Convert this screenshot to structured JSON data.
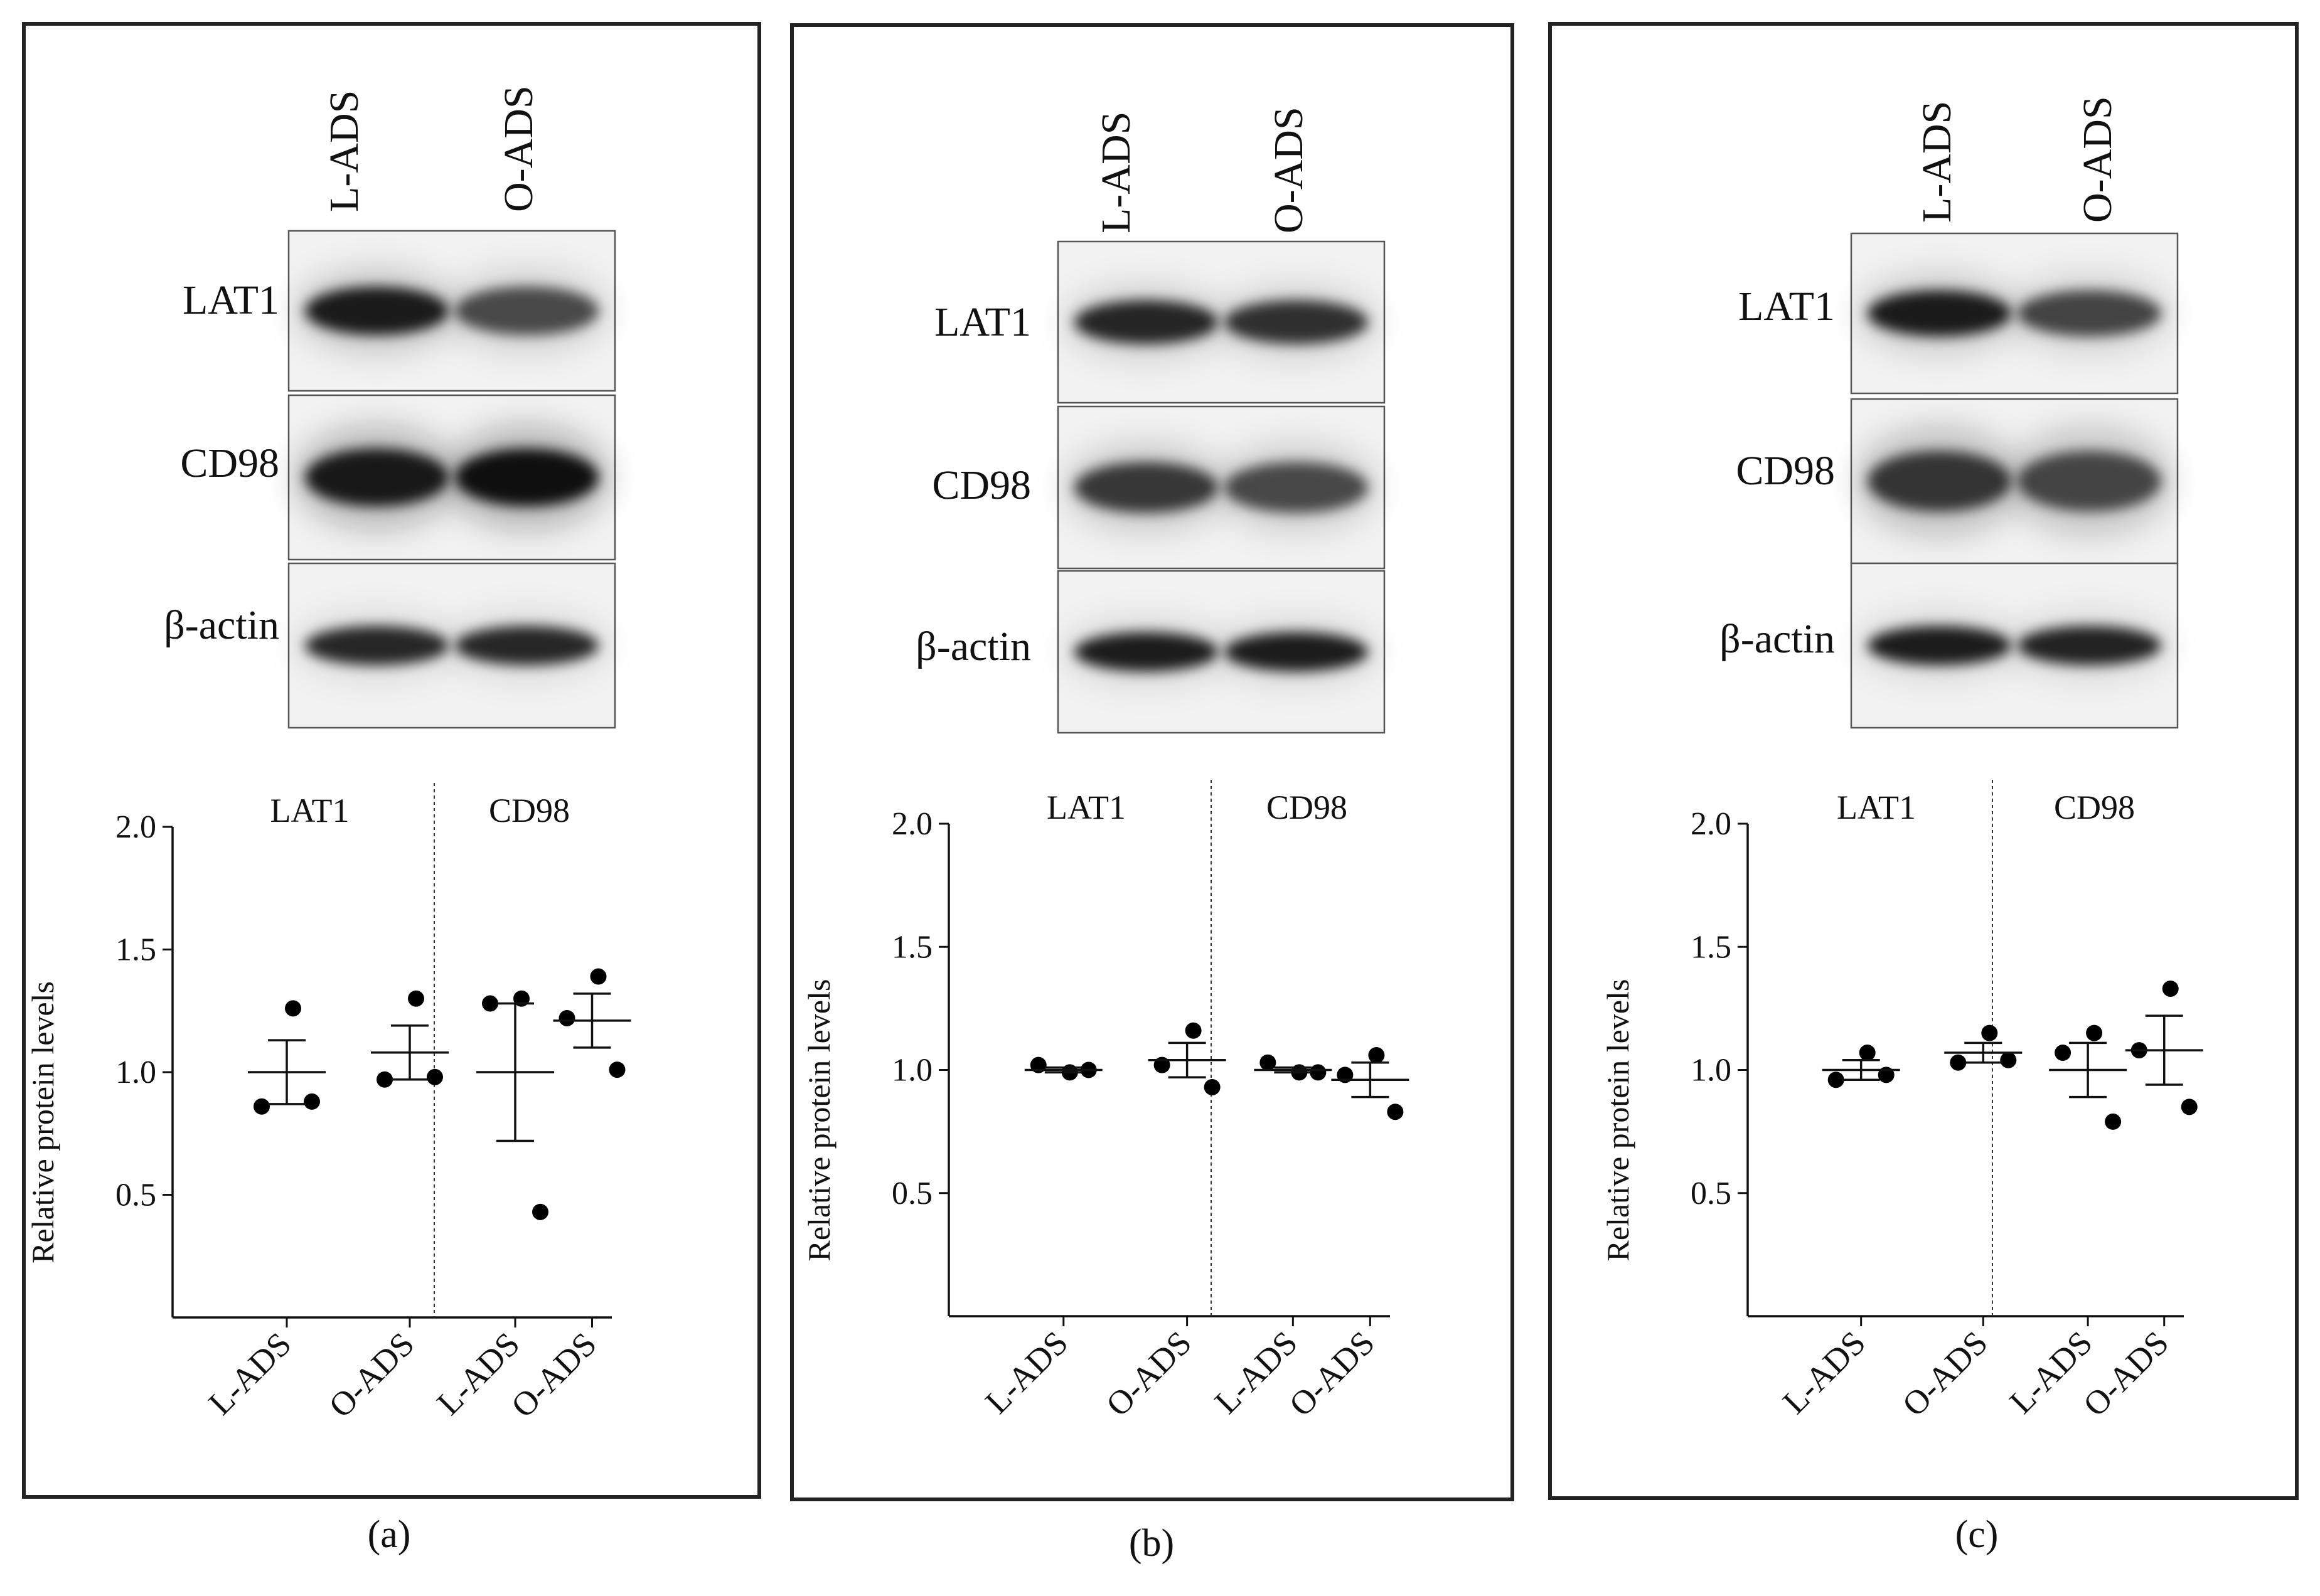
{
  "panels": [
    {
      "label": "(a)",
      "lanes": [
        "L-ADS",
        "O-ADS"
      ],
      "blots": [
        "LAT1",
        "CD98",
        "β-actin"
      ],
      "blot_bands": [
        {
          "intensity": [
            0.95,
            0.72
          ],
          "spread": 0.55
        },
        {
          "intensity": [
            0.95,
            1.0
          ],
          "spread": 0.75
        },
        {
          "intensity": [
            0.9,
            0.9
          ],
          "spread": 0.35
        }
      ]
    },
    {
      "label": "(b)",
      "lanes": [
        "L-ADS",
        "O-ADS"
      ],
      "blots": [
        "LAT1",
        "CD98",
        "β-actin"
      ],
      "blot_bands": [
        {
          "intensity": [
            0.9,
            0.85
          ],
          "spread": 0.45
        },
        {
          "intensity": [
            0.8,
            0.72
          ],
          "spread": 0.6
        },
        {
          "intensity": [
            0.95,
            0.95
          ],
          "spread": 0.35
        }
      ]
    },
    {
      "label": "(c)",
      "lanes": [
        "L-ADS",
        "O-ADS"
      ],
      "blots": [
        "LAT1",
        "CD98",
        "β-actin"
      ],
      "blot_bands": [
        {
          "intensity": [
            0.95,
            0.75
          ],
          "spread": 0.5
        },
        {
          "intensity": [
            0.8,
            0.72
          ],
          "spread": 0.8
        },
        {
          "intensity": [
            0.95,
            0.92
          ],
          "spread": 0.35
        }
      ]
    }
  ],
  "chart_data": [
    {
      "type": "scatter",
      "panel": "(a)",
      "ylabel": "Relative protein levels",
      "ylim": [
        0.0,
        2.0
      ],
      "yticks": [
        "0.5",
        "1.0",
        "1.5",
        "2.0"
      ],
      "groups": [
        "LAT1",
        "CD98"
      ],
      "categories": [
        "L-ADS",
        "O-ADS",
        "L-ADS",
        "O-ADS"
      ],
      "series": [
        {
          "group": "LAT1",
          "name": "L-ADS",
          "points": [
            1.26,
            0.86,
            0.88
          ],
          "mean": 1.0,
          "sem": 0.13
        },
        {
          "group": "LAT1",
          "name": "O-ADS",
          "points": [
            1.3,
            0.97,
            0.98
          ],
          "mean": 1.08,
          "sem": 0.11
        },
        {
          "group": "CD98",
          "name": "L-ADS",
          "points": [
            1.3,
            1.28,
            0.43
          ],
          "mean": 1.0,
          "sem": 0.28
        },
        {
          "group": "CD98",
          "name": "O-ADS",
          "points": [
            1.39,
            1.22,
            1.01
          ],
          "mean": 1.21,
          "sem": 0.11
        }
      ]
    },
    {
      "type": "scatter",
      "panel": "(b)",
      "ylabel": "Relative protein levels",
      "ylim": [
        0.0,
        2.0
      ],
      "yticks": [
        "0.5",
        "1.0",
        "1.5",
        "2.0"
      ],
      "groups": [
        "LAT1",
        "CD98"
      ],
      "categories": [
        "L-ADS",
        "O-ADS",
        "L-ADS",
        "O-ADS"
      ],
      "series": [
        {
          "group": "LAT1",
          "name": "L-ADS",
          "points": [
            0.99,
            1.02,
            1.0
          ],
          "mean": 1.0,
          "sem": 0.01
        },
        {
          "group": "LAT1",
          "name": "O-ADS",
          "points": [
            1.16,
            1.02,
            0.93
          ],
          "mean": 1.04,
          "sem": 0.07
        },
        {
          "group": "CD98",
          "name": "L-ADS",
          "points": [
            0.99,
            1.03,
            0.99
          ],
          "mean": 1.0,
          "sem": 0.01
        },
        {
          "group": "CD98",
          "name": "O-ADS",
          "points": [
            1.06,
            0.98,
            0.83
          ],
          "mean": 0.96,
          "sem": 0.07
        }
      ]
    },
    {
      "type": "scatter",
      "panel": "(c)",
      "ylabel": "Relative protein levels",
      "ylim": [
        0.0,
        2.0
      ],
      "yticks": [
        "0.5",
        "1.0",
        "1.5",
        "2.0"
      ],
      "groups": [
        "LAT1",
        "CD98"
      ],
      "categories": [
        "L-ADS",
        "O-ADS",
        "L-ADS",
        "O-ADS"
      ],
      "series": [
        {
          "group": "LAT1",
          "name": "L-ADS",
          "points": [
            1.07,
            0.96,
            0.98
          ],
          "mean": 1.0,
          "sem": 0.04
        },
        {
          "group": "LAT1",
          "name": "O-ADS",
          "points": [
            1.15,
            1.03,
            1.04
          ],
          "mean": 1.07,
          "sem": 0.04
        },
        {
          "group": "CD98",
          "name": "L-ADS",
          "points": [
            1.15,
            1.07,
            0.79
          ],
          "mean": 1.0,
          "sem": 0.11
        },
        {
          "group": "CD98",
          "name": "O-ADS",
          "points": [
            1.33,
            1.08,
            0.85
          ],
          "mean": 1.08,
          "sem": 0.14
        }
      ]
    }
  ]
}
